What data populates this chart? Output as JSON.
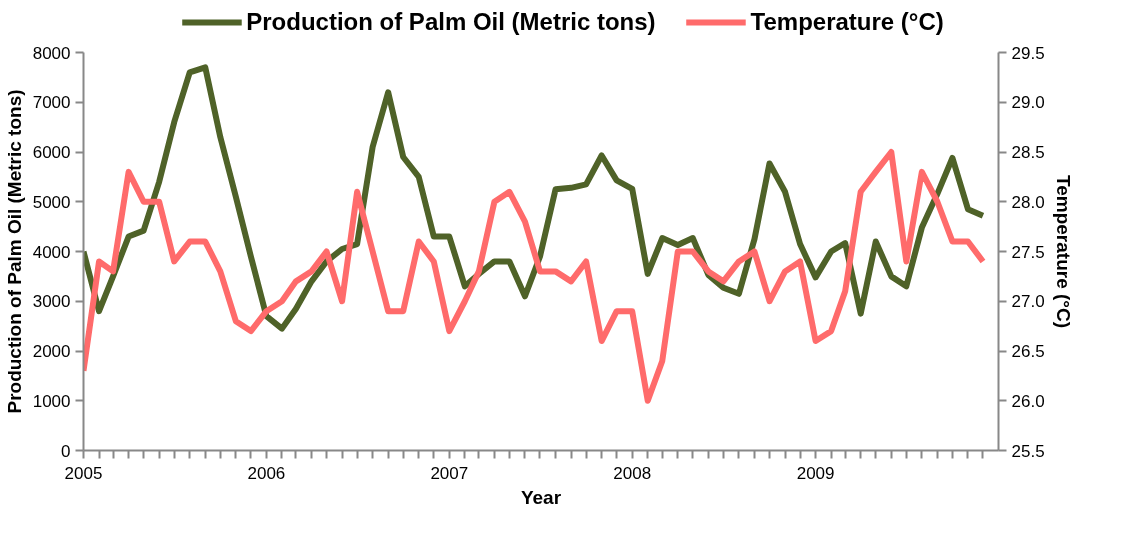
{
  "chart_data": {
    "type": "line",
    "xlabel": "Year",
    "ylabel": "Production of Palm Oil (Metric tons)",
    "y2label": "Temperature (°C)",
    "x": [
      "2005-01",
      "2005-02",
      "2005-03",
      "2005-04",
      "2005-05",
      "2005-06",
      "2005-07",
      "2005-08",
      "2005-09",
      "2005-10",
      "2005-11",
      "2005-12",
      "2006-01",
      "2006-02",
      "2006-03",
      "2006-04",
      "2006-05",
      "2006-06",
      "2006-07",
      "2006-08",
      "2006-09",
      "2006-10",
      "2006-11",
      "2006-12",
      "2007-01",
      "2007-02",
      "2007-03",
      "2007-04",
      "2007-05",
      "2007-06",
      "2007-07",
      "2007-08",
      "2007-09",
      "2007-10",
      "2007-11",
      "2007-12",
      "2008-01",
      "2008-02",
      "2008-03",
      "2008-04",
      "2008-05",
      "2008-06",
      "2008-07",
      "2008-08",
      "2008-09",
      "2008-10",
      "2008-11",
      "2008-12",
      "2009-01",
      "2009-02",
      "2009-03",
      "2009-04",
      "2009-05",
      "2009-06",
      "2009-07",
      "2009-08",
      "2009-09",
      "2009-10",
      "2009-11",
      "2009-12"
    ],
    "series": [
      {
        "name": "Production of Palm Oil (Metric tons)",
        "color": "#4f6228",
        "values": [
          4000,
          2800,
          3500,
          4300,
          4420,
          5400,
          6600,
          7600,
          7700,
          6300,
          5100,
          3900,
          2700,
          2450,
          2850,
          3400,
          3800,
          4050,
          4150,
          6100,
          7200,
          5900,
          5500,
          4300,
          4300,
          3300,
          3550,
          3800,
          3800,
          3100,
          3900,
          5250,
          5280,
          5350,
          5930,
          5430,
          5260,
          3550,
          4270,
          4130,
          4270,
          3530,
          3270,
          3150,
          4250,
          5770,
          5200,
          4150,
          3480,
          4000,
          4170,
          2750,
          4200,
          3500,
          3300,
          4480,
          5160,
          5880,
          4850,
          4720
        ]
      },
      {
        "name": "Temperature (°C)",
        "color": "#ff6b6b",
        "axis": "y2",
        "values": [
          26.3,
          27.4,
          27.3,
          28.3,
          28.0,
          28.0,
          27.4,
          27.6,
          27.6,
          27.3,
          26.8,
          26.7,
          26.9,
          27.0,
          27.2,
          27.3,
          27.5,
          27.0,
          28.1,
          27.5,
          26.9,
          26.9,
          27.6,
          27.4,
          26.7,
          27.0,
          27.3,
          28.0,
          28.1,
          27.8,
          27.3,
          27.3,
          27.2,
          27.4,
          26.6,
          26.9,
          26.9,
          26.0,
          26.4,
          27.5,
          27.5,
          27.3,
          27.2,
          27.4,
          27.5,
          27.0,
          27.3,
          27.4,
          26.6,
          26.7,
          27.1,
          28.1,
          28.3,
          28.5,
          27.4,
          28.3,
          28.0,
          27.6,
          27.6,
          27.4
        ]
      }
    ],
    "xlim": [
      "2005-01",
      "2010-01"
    ],
    "xticks": [
      {
        "value": "2005-01",
        "label": "2005"
      },
      {
        "value": "2005-02",
        "label": null
      },
      {
        "value": "2005-03",
        "label": null
      },
      {
        "value": "2005-04",
        "label": null
      },
      {
        "value": "2005-05",
        "label": null
      },
      {
        "value": "2005-06",
        "label": null
      },
      {
        "value": "2005-07",
        "label": null
      },
      {
        "value": "2005-08",
        "label": null
      },
      {
        "value": "2005-09",
        "label": null
      },
      {
        "value": "2005-10",
        "label": null
      },
      {
        "value": "2005-11",
        "label": null
      },
      {
        "value": "2005-12",
        "label": null
      },
      {
        "value": "2006-01",
        "label": "2006"
      },
      {
        "value": "2006-02",
        "label": null
      },
      {
        "value": "2006-03",
        "label": null
      },
      {
        "value": "2006-04",
        "label": null
      },
      {
        "value": "2006-05",
        "label": null
      },
      {
        "value": "2006-06",
        "label": null
      },
      {
        "value": "2006-07",
        "label": null
      },
      {
        "value": "2006-08",
        "label": null
      },
      {
        "value": "2006-09",
        "label": null
      },
      {
        "value": "2006-10",
        "label": null
      },
      {
        "value": "2006-11",
        "label": null
      },
      {
        "value": "2006-12",
        "label": null
      },
      {
        "value": "2007-01",
        "label": "2007"
      },
      {
        "value": "2007-02",
        "label": null
      },
      {
        "value": "2007-03",
        "label": null
      },
      {
        "value": "2007-04",
        "label": null
      },
      {
        "value": "2007-05",
        "label": null
      },
      {
        "value": "2007-06",
        "label": null
      },
      {
        "value": "2007-07",
        "label": null
      },
      {
        "value": "2007-08",
        "label": null
      },
      {
        "value": "2007-09",
        "label": null
      },
      {
        "value": "2007-10",
        "label": null
      },
      {
        "value": "2007-11",
        "label": null
      },
      {
        "value": "2007-12",
        "label": null
      },
      {
        "value": "2008-01",
        "label": "2008"
      },
      {
        "value": "2008-02",
        "label": null
      },
      {
        "value": "2008-03",
        "label": null
      },
      {
        "value": "2008-04",
        "label": null
      },
      {
        "value": "2008-05",
        "label": null
      },
      {
        "value": "2008-06",
        "label": null
      },
      {
        "value": "2008-07",
        "label": null
      },
      {
        "value": "2008-08",
        "label": null
      },
      {
        "value": "2008-09",
        "label": null
      },
      {
        "value": "2008-10",
        "label": null
      },
      {
        "value": "2008-11",
        "label": null
      },
      {
        "value": "2008-12",
        "label": null
      },
      {
        "value": "2009-01",
        "label": "2009"
      },
      {
        "value": "2009-02",
        "label": null
      },
      {
        "value": "2009-03",
        "label": null
      },
      {
        "value": "2009-04",
        "label": null
      },
      {
        "value": "2009-05",
        "label": null
      },
      {
        "value": "2009-06",
        "label": null
      },
      {
        "value": "2009-07",
        "label": null
      },
      {
        "value": "2009-08",
        "label": null
      },
      {
        "value": "2009-09",
        "label": null
      },
      {
        "value": "2009-10",
        "label": null
      },
      {
        "value": "2009-11",
        "label": null
      },
      {
        "value": "2009-12",
        "label": null
      }
    ],
    "ylim": [
      0,
      8000
    ],
    "yticks": [
      0,
      1000,
      2000,
      3000,
      4000,
      5000,
      6000,
      7000,
      8000
    ],
    "y2lim": [
      25.5,
      29.5
    ],
    "y2ticks": [
      25.5,
      {
        "value": 26,
        "label": "26.0"
      },
      26.5,
      {
        "value": 27,
        "label": "27.0"
      },
      27.5,
      {
        "value": 28,
        "label": "28.0"
      },
      28.5,
      {
        "value": 29,
        "label": "29.0"
      },
      29.5
    ],
    "legend": "top",
    "grid": false,
    "marker": "none",
    "line_style": "solid"
  }
}
